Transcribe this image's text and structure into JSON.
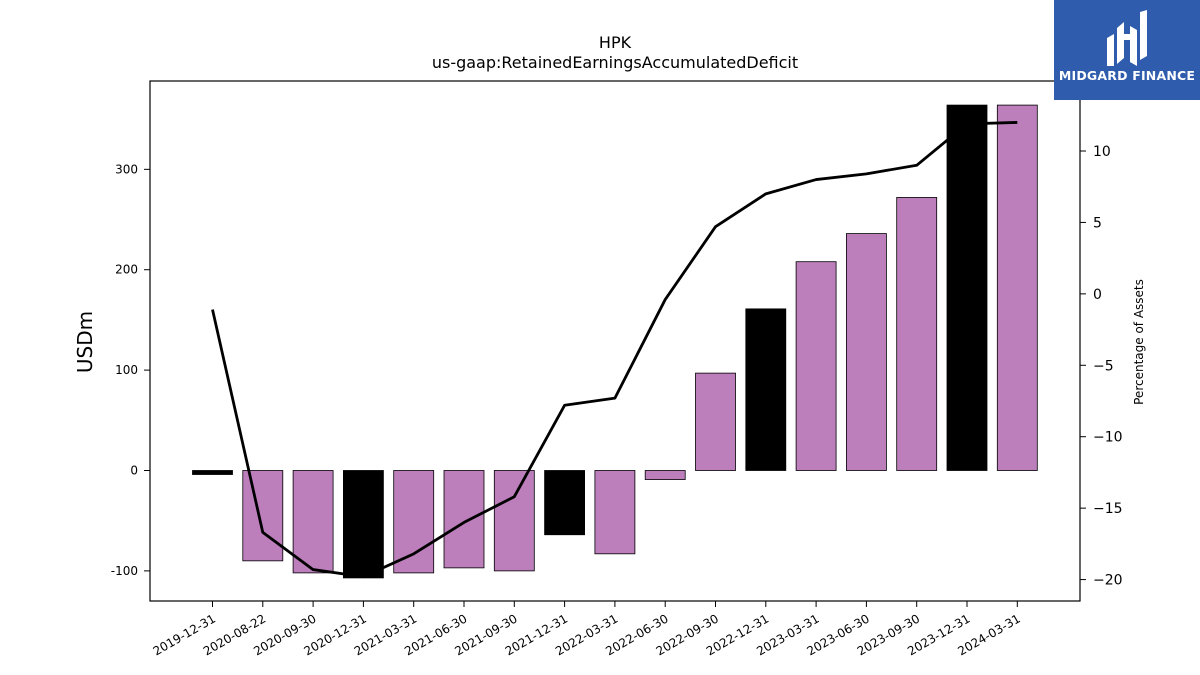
{
  "brand": {
    "name": "MIDGARD FINANCE",
    "icon": "midgard-logo-icon",
    "color": "#2f5cac"
  },
  "chart_data": {
    "type": "bar",
    "title": "HPK",
    "subtitle": "us-gaap:RetainedEarningsAccumulatedDeficit",
    "ylabel": "USDm",
    "y2label": "Percentage of Assets",
    "ylim": [
      -130,
      388
    ],
    "y2lim": [
      -21.5,
      14.9
    ],
    "yticks": [
      -100,
      0,
      100,
      200,
      300
    ],
    "y2ticks": [
      -20,
      -15,
      -10,
      -5,
      0,
      5,
      10
    ],
    "categories": [
      "2019-12-31",
      "2020-08-22",
      "2020-09-30",
      "2020-12-31",
      "2021-03-31",
      "2021-06-30",
      "2021-09-30",
      "2021-12-31",
      "2022-03-31",
      "2022-06-30",
      "2022-09-30",
      "2022-12-31",
      "2023-03-31",
      "2023-06-30",
      "2023-09-30",
      "2023-12-31",
      "2024-03-31"
    ],
    "series": [
      {
        "type": "bar",
        "values": [
          -4,
          -90,
          -102,
          -107,
          -102,
          -97,
          -100,
          -64,
          -83,
          -9,
          97,
          161,
          208,
          236,
          272,
          364,
          364
        ],
        "colors": [
          "#000000",
          "#bc7fbc",
          "#bc7fbc",
          "#000000",
          "#bc7fbc",
          "#bc7fbc",
          "#bc7fbc",
          "#000000",
          "#bc7fbc",
          "#bc7fbc",
          "#bc7fbc",
          "#000000",
          "#bc7fbc",
          "#bc7fbc",
          "#bc7fbc",
          "#000000",
          "#bc7fbc"
        ]
      },
      {
        "type": "line",
        "axis": "right",
        "color": "#000000",
        "values": [
          -1.1,
          -16.7,
          -19.3,
          -19.8,
          -18.2,
          -16.0,
          -14.2,
          -7.8,
          -7.3,
          -0.4,
          4.7,
          7.0,
          8.0,
          8.4,
          9.0,
          11.9,
          12.0
        ]
      }
    ],
    "grid": false,
    "legend": "none"
  }
}
